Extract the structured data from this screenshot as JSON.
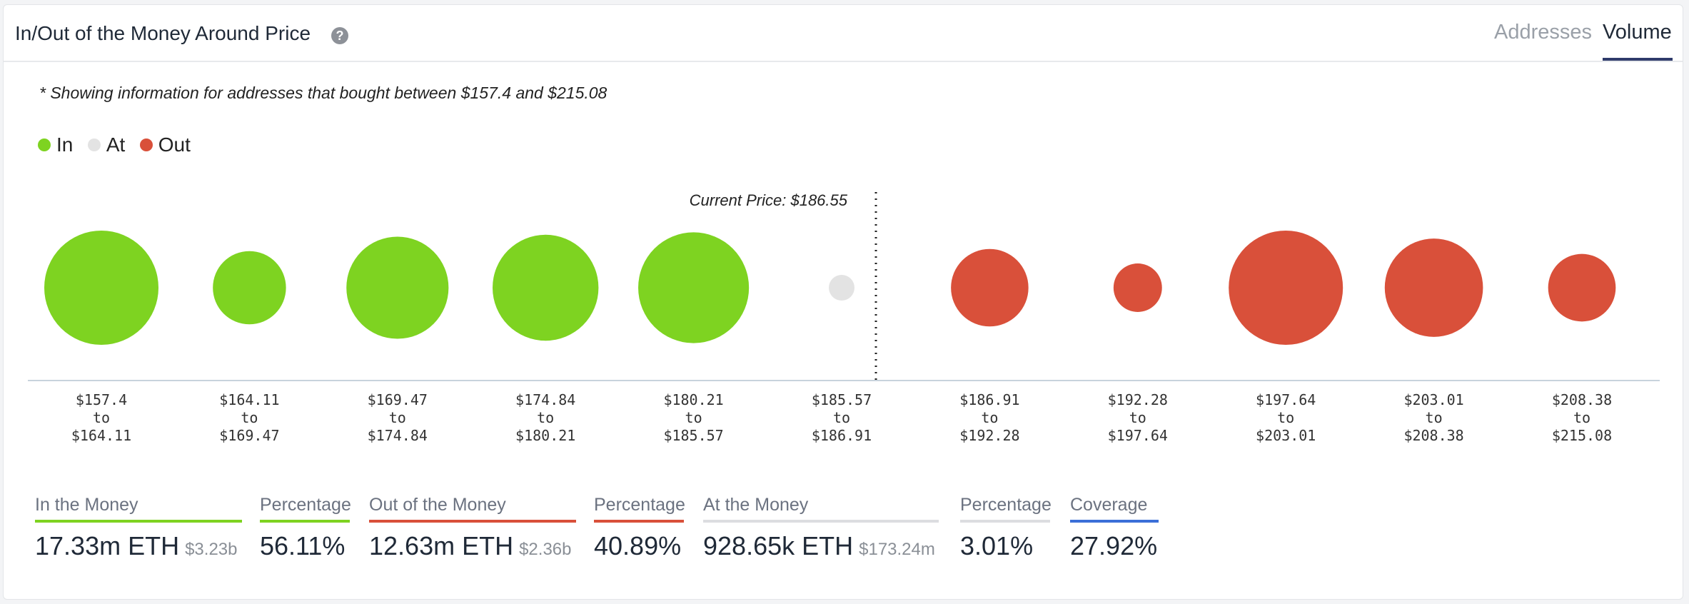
{
  "header": {
    "title": "In/Out of the Money Around Price",
    "tabs": [
      {
        "label": "Addresses",
        "active": false
      },
      {
        "label": "Volume",
        "active": true
      }
    ]
  },
  "note": "* Showing information for addresses that bought between $157.4 and $215.08",
  "legend": [
    {
      "label": "In",
      "color": "#7ed321"
    },
    {
      "label": "At",
      "color": "#e3e3e3"
    },
    {
      "label": "Out",
      "color": "#d9503a"
    }
  ],
  "chart_data": {
    "type": "scatter",
    "current_price_label": "Current Price: $186.55",
    "current_price": 186.55,
    "categories": [
      {
        "from": "$157.4",
        "to": "$164.11",
        "status": "in",
        "size": 1.0
      },
      {
        "from": "$164.11",
        "to": "$169.47",
        "status": "in",
        "size": 0.41
      },
      {
        "from": "$169.47",
        "to": "$174.84",
        "status": "in",
        "size": 0.8
      },
      {
        "from": "$174.84",
        "to": "$180.21",
        "status": "in",
        "size": 0.86
      },
      {
        "from": "$180.21",
        "to": "$185.57",
        "status": "in",
        "size": 0.94
      },
      {
        "from": "$185.57",
        "to": "$186.91",
        "status": "at",
        "size": 0.05
      },
      {
        "from": "$186.91",
        "to": "$192.28",
        "status": "out",
        "size": 0.46
      },
      {
        "from": "$192.28",
        "to": "$197.64",
        "status": "out",
        "size": 0.18
      },
      {
        "from": "$197.64",
        "to": "$203.01",
        "status": "out",
        "size": 1.0
      },
      {
        "from": "$203.01",
        "to": "$208.38",
        "status": "out",
        "size": 0.74
      },
      {
        "from": "$208.38",
        "to": "$215.08",
        "status": "out",
        "size": 0.35
      }
    ],
    "range_connector": "to",
    "colors": {
      "in": "#7ed321",
      "at": "#e3e3e3",
      "out": "#d9503a"
    }
  },
  "stats": [
    {
      "label": "In the Money",
      "value": "17.33m ETH",
      "sub": "$3.23b",
      "color": "#7ed321"
    },
    {
      "label": "Percentage",
      "value": "56.11%",
      "sub": "",
      "color": "#7ed321"
    },
    {
      "label": "Out of the Money",
      "value": "12.63m ETH",
      "sub": "$2.36b",
      "color": "#d9503a"
    },
    {
      "label": "Percentage",
      "value": "40.89%",
      "sub": "",
      "color": "#d9503a"
    },
    {
      "label": "At the Money",
      "value": "928.65k ETH",
      "sub": "$173.24m",
      "color": "#dcdde0"
    },
    {
      "label": "Percentage",
      "value": "3.01%",
      "sub": "",
      "color": "#dcdde0"
    },
    {
      "label": "Coverage",
      "value": "27.92%",
      "sub": "",
      "color": "#3b6fd8"
    }
  ]
}
